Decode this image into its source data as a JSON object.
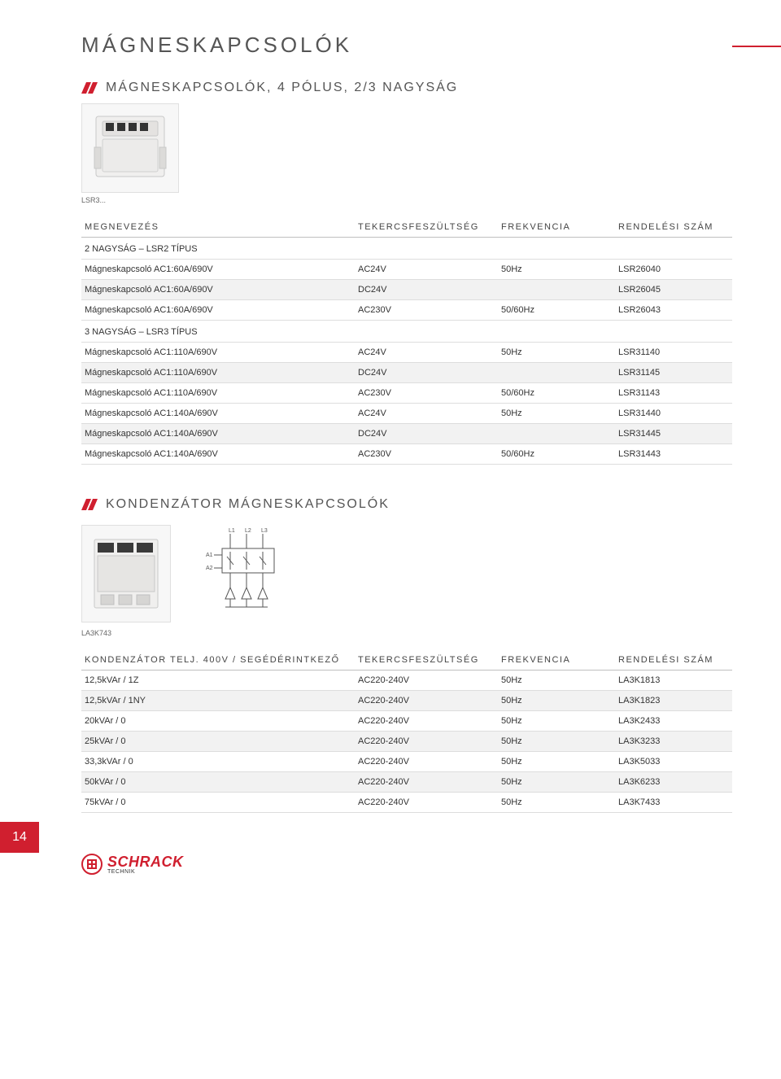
{
  "page_title": "MÁGNESKAPCSOLÓK",
  "page_number": "14",
  "logo": {
    "text": "SCHRACK",
    "sub": "TECHNIK"
  },
  "colors": {
    "accent": "#d01f2f",
    "text": "#333333",
    "heading": "#555555",
    "rule": "#dddddd",
    "shaded": "#f2f2f2"
  },
  "section1": {
    "title": "MÁGNESKAPCSOLÓK, 4 PÓLUS, 2/3 NAGYSÁG",
    "image_caption": "LSR3...",
    "columns": [
      "MEGNEVEZÉS",
      "TEKERCSFESZÜLTSÉG",
      "FREKVENCIA",
      "RENDELÉSI SZÁM"
    ],
    "groups": [
      {
        "label": "2 NAGYSÁG – LSR2 TÍPUS",
        "rows": [
          {
            "name": "Mágneskapcsoló AC1:60A/690V",
            "a": "AC24V",
            "b": "50Hz",
            "c": "LSR26040",
            "shaded": false
          },
          {
            "name": "Mágneskapcsoló AC1:60A/690V",
            "a": "DC24V",
            "b": "",
            "c": "LSR26045",
            "shaded": true
          },
          {
            "name": "Mágneskapcsoló AC1:60A/690V",
            "a": "AC230V",
            "b": "50/60Hz",
            "c": "LSR26043",
            "shaded": false
          }
        ]
      },
      {
        "label": "3 NAGYSÁG – LSR3 TÍPUS",
        "rows": [
          {
            "name": "Mágneskapcsoló AC1:110A/690V",
            "a": "AC24V",
            "b": "50Hz",
            "c": "LSR31140",
            "shaded": false
          },
          {
            "name": "Mágneskapcsoló AC1:110A/690V",
            "a": "DC24V",
            "b": "",
            "c": "LSR31145",
            "shaded": true
          },
          {
            "name": "Mágneskapcsoló AC1:110A/690V",
            "a": "AC230V",
            "b": "50/60Hz",
            "c": "LSR31143",
            "shaded": false
          },
          {
            "name": "Mágneskapcsoló AC1:140A/690V",
            "a": "AC24V",
            "b": "50Hz",
            "c": "LSR31440",
            "shaded": false
          },
          {
            "name": "Mágneskapcsoló AC1:140A/690V",
            "a": "DC24V",
            "b": "",
            "c": "LSR31445",
            "shaded": true
          },
          {
            "name": "Mágneskapcsoló AC1:140A/690V",
            "a": "AC230V",
            "b": "50/60Hz",
            "c": "LSR31443",
            "shaded": false
          }
        ]
      }
    ]
  },
  "section2": {
    "title": "KONDENZÁTOR MÁGNESKAPCSOLÓK",
    "image_caption": "LA3K743",
    "columns": [
      "KONDENZÁTOR TELJ. 400V / SEGÉDÉRINTKEZŐ",
      "TEKERCSFESZÜLTSÉG",
      "FREKVENCIA",
      "RENDELÉSI SZÁM"
    ],
    "rows": [
      {
        "name": "12,5kVAr / 1Z",
        "a": "AC220-240V",
        "b": "50Hz",
        "c": "LA3K1813",
        "shaded": false
      },
      {
        "name": "12,5kVAr / 1NY",
        "a": "AC220-240V",
        "b": "50Hz",
        "c": "LA3K1823",
        "shaded": true
      },
      {
        "name": "20kVAr / 0",
        "a": "AC220-240V",
        "b": "50Hz",
        "c": "LA3K2433",
        "shaded": false
      },
      {
        "name": "25kVAr / 0",
        "a": "AC220-240V",
        "b": "50Hz",
        "c": "LA3K3233",
        "shaded": true
      },
      {
        "name": "33,3kVAr / 0",
        "a": "AC220-240V",
        "b": "50Hz",
        "c": "LA3K5033",
        "shaded": false
      },
      {
        "name": "50kVAr / 0",
        "a": "AC220-240V",
        "b": "50Hz",
        "c": "LA3K6233",
        "shaded": true
      },
      {
        "name": "75kVAr / 0",
        "a": "AC220-240V",
        "b": "50Hz",
        "c": "LA3K7433",
        "shaded": false
      }
    ]
  }
}
